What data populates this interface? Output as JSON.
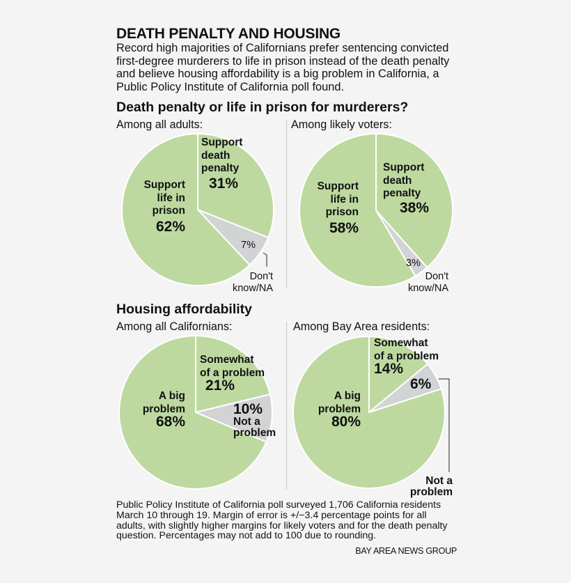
{
  "header": {
    "title": "DEATH PENALTY AND HOUSING",
    "intro": "Record high majorities of Californians prefer sentencing convicted first-degree murderers to life in prison instead of the death penalty and believe housing affordability is a big problem in California, a Public Policy Institute of California poll found."
  },
  "colors": {
    "background": "#f4f4f4",
    "green": "#bdd9a0",
    "gray": "#d2d3d5",
    "slice_border": "#ffffff",
    "divider": "#c8c8c8",
    "text": "#111111"
  },
  "sections": [
    {
      "title": "Death penalty or life in prison for murderers?",
      "charts": [
        {
          "subtitle": "Among all adults:",
          "labels": {
            "death": [
              "Support",
              "death",
              "penalty"
            ],
            "death_pct": "31%",
            "life": [
              "Support",
              "life in",
              "prison"
            ],
            "life_pct": "62%",
            "na_pct": "7%",
            "na": [
              "Don't",
              "know/NA"
            ]
          }
        },
        {
          "subtitle": "Among likely voters:",
          "labels": {
            "death": [
              "Support",
              "death",
              "penalty"
            ],
            "death_pct": "38%",
            "life": [
              "Support",
              "life in",
              "prison"
            ],
            "life_pct": "58%",
            "na_pct": "3%",
            "na": [
              "Don't",
              "know/NA"
            ]
          }
        }
      ]
    },
    {
      "title": "Housing affordability",
      "charts": [
        {
          "subtitle": "Among all Californians:",
          "labels": {
            "somewhat": [
              "Somewhat",
              "of a problem"
            ],
            "somewhat_pct": "21%",
            "not_pct": "10%",
            "not": [
              "Not a",
              "problem"
            ],
            "big": [
              "A big",
              "problem"
            ],
            "big_pct": "68%"
          }
        },
        {
          "subtitle": "Among Bay Area residents:",
          "labels": {
            "somewhat": [
              "Somewhat",
              "of a problem"
            ],
            "somewhat_pct": "14%",
            "not_pct": "6%",
            "not": [
              "Not a",
              "problem"
            ],
            "big": [
              "A big",
              "problem"
            ],
            "big_pct": "80%"
          }
        }
      ]
    }
  ],
  "footnote": "Public Policy Institute of California poll surveyed 1,706 California residents March 10 through 19. Margin of error is +/−3.4 percentage points for all adults, with slightly higher margins for likely voters and for the death penalty question. Percentages may not add to 100 due to rounding.",
  "credit": "BAY AREA NEWS GROUP",
  "chart_data": [
    {
      "type": "pie",
      "title": "Death penalty or life in prison for murderers? — Among all adults",
      "categories": [
        "Support death penalty",
        "Don't know/NA",
        "Support life in prison"
      ],
      "values": [
        31,
        7,
        62
      ],
      "colors": [
        "#bdd9a0",
        "#d2d3d5",
        "#bdd9a0"
      ],
      "start_angle_deg": 0,
      "direction": "clockwise"
    },
    {
      "type": "pie",
      "title": "Death penalty or life in prison for murderers? — Among likely voters",
      "categories": [
        "Support death penalty",
        "Don't know/NA",
        "Support life in prison"
      ],
      "values": [
        38,
        3,
        58
      ],
      "colors": [
        "#bdd9a0",
        "#d2d3d5",
        "#bdd9a0"
      ],
      "start_angle_deg": 0,
      "direction": "clockwise"
    },
    {
      "type": "pie",
      "title": "Housing affordability — Among all Californians",
      "categories": [
        "Somewhat of a problem",
        "Not a problem",
        "A big problem"
      ],
      "values": [
        21,
        10,
        68
      ],
      "colors": [
        "#bdd9a0",
        "#d2d3d5",
        "#bdd9a0"
      ],
      "start_angle_deg": 0,
      "direction": "clockwise"
    },
    {
      "type": "pie",
      "title": "Housing affordability — Among Bay Area residents",
      "categories": [
        "Somewhat of a problem",
        "Not a problem",
        "A big problem"
      ],
      "values": [
        14,
        6,
        80
      ],
      "colors": [
        "#bdd9a0",
        "#d2d3d5",
        "#bdd9a0"
      ],
      "start_angle_deg": 0,
      "direction": "clockwise"
    }
  ]
}
